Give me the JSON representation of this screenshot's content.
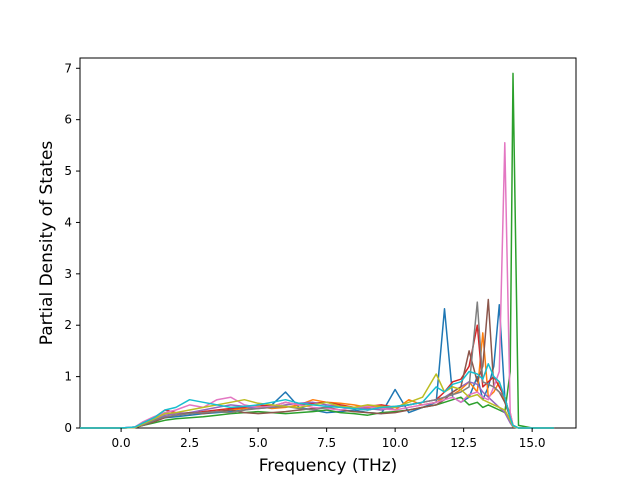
{
  "chart_data": {
    "type": "line",
    "title": "",
    "xlabel": "Frequency (THz)",
    "ylabel": "Partial Density of States",
    "xlim": [
      -1.5,
      16.6
    ],
    "ylim": [
      0,
      7.2
    ],
    "x_ticks": [
      0.0,
      2.5,
      5.0,
      7.5,
      10.0,
      12.5,
      15.0
    ],
    "x_tick_labels": [
      "0.0",
      "2.5",
      "5.0",
      "7.5",
      "10.0",
      "12.5",
      "15.0"
    ],
    "y_ticks": [
      0,
      1,
      2,
      3,
      4,
      5,
      6,
      7
    ],
    "y_tick_labels": [
      "0",
      "1",
      "2",
      "3",
      "4",
      "5",
      "6",
      "7"
    ],
    "grid": false,
    "legend": "none",
    "x": [
      -1.5,
      -0.5,
      0.0,
      0.5,
      0.8,
      1.2,
      1.6,
      2.0,
      2.5,
      3.0,
      3.5,
      4.0,
      4.5,
      5.0,
      5.5,
      6.0,
      6.5,
      7.0,
      7.5,
      8.0,
      8.5,
      9.0,
      9.5,
      10.0,
      10.5,
      11.0,
      11.5,
      11.8,
      12.1,
      12.4,
      12.7,
      13.0,
      13.2,
      13.4,
      13.6,
      13.8,
      14.0,
      14.2,
      14.3,
      14.5,
      15.0,
      15.8
    ],
    "series": [
      {
        "color": "#1f77b4",
        "values": [
          0,
          0,
          0,
          0.02,
          0.1,
          0.15,
          0.2,
          0.22,
          0.25,
          0.28,
          0.3,
          0.32,
          0.35,
          0.4,
          0.45,
          0.7,
          0.4,
          0.35,
          0.3,
          0.32,
          0.35,
          0.3,
          0.28,
          0.75,
          0.3,
          0.4,
          0.5,
          2.32,
          0.6,
          0.5,
          0.6,
          1.0,
          0.55,
          0.8,
          1.2,
          2.4,
          0.6,
          0.2,
          0.05,
          0,
          0,
          0
        ]
      },
      {
        "color": "#ff7f0e",
        "values": [
          0,
          0,
          0,
          0.01,
          0.08,
          0.18,
          0.3,
          0.25,
          0.28,
          0.3,
          0.32,
          0.35,
          0.38,
          0.42,
          0.38,
          0.4,
          0.45,
          0.55,
          0.5,
          0.48,
          0.45,
          0.4,
          0.42,
          0.35,
          0.55,
          0.45,
          0.5,
          0.6,
          0.65,
          0.75,
          0.9,
          0.7,
          1.85,
          0.6,
          0.7,
          0.9,
          0.5,
          0.3,
          0.05,
          0,
          0,
          0
        ]
      },
      {
        "color": "#2ca02c",
        "values": [
          0,
          0,
          0,
          0.01,
          0.05,
          0.1,
          0.15,
          0.18,
          0.2,
          0.22,
          0.25,
          0.28,
          0.3,
          0.32,
          0.3,
          0.28,
          0.3,
          0.32,
          0.35,
          0.3,
          0.28,
          0.25,
          0.3,
          0.32,
          0.35,
          0.4,
          0.45,
          0.5,
          0.55,
          0.6,
          0.45,
          0.5,
          0.4,
          0.45,
          0.4,
          0.35,
          0.3,
          1.1,
          6.9,
          0.05,
          0,
          0
        ]
      },
      {
        "color": "#d62728",
        "values": [
          0,
          0,
          0,
          0.01,
          0.06,
          0.2,
          0.35,
          0.3,
          0.28,
          0.32,
          0.35,
          0.38,
          0.4,
          0.45,
          0.42,
          0.5,
          0.45,
          0.48,
          0.5,
          0.45,
          0.4,
          0.42,
          0.45,
          0.4,
          0.45,
          0.5,
          0.55,
          0.7,
          0.9,
          0.95,
          1.2,
          2.0,
          0.8,
          0.9,
          1.0,
          0.8,
          0.6,
          0.2,
          0.05,
          0,
          0,
          0
        ]
      },
      {
        "color": "#9467bd",
        "values": [
          0,
          0,
          0,
          0.02,
          0.1,
          0.15,
          0.25,
          0.28,
          0.3,
          0.35,
          0.4,
          0.45,
          0.42,
          0.38,
          0.4,
          0.45,
          0.48,
          0.5,
          0.45,
          0.42,
          0.4,
          0.38,
          0.35,
          0.4,
          0.45,
          0.5,
          0.55,
          0.6,
          0.7,
          0.8,
          0.9,
          0.85,
          0.7,
          0.6,
          0.5,
          0.4,
          0.3,
          0.1,
          0.02,
          0,
          0,
          0
        ]
      },
      {
        "color": "#8c564b",
        "values": [
          0,
          0,
          0,
          0.01,
          0.05,
          0.12,
          0.2,
          0.25,
          0.3,
          0.28,
          0.32,
          0.35,
          0.3,
          0.28,
          0.3,
          0.32,
          0.35,
          0.38,
          0.4,
          0.35,
          0.32,
          0.3,
          0.28,
          0.3,
          0.35,
          0.4,
          0.45,
          0.55,
          0.7,
          0.8,
          1.5,
          0.9,
          1.2,
          2.5,
          0.8,
          0.7,
          0.5,
          0.2,
          0.05,
          0,
          0,
          0
        ]
      },
      {
        "color": "#e377c2",
        "values": [
          0,
          0,
          0,
          0.02,
          0.12,
          0.22,
          0.3,
          0.35,
          0.45,
          0.4,
          0.55,
          0.6,
          0.45,
          0.4,
          0.42,
          0.5,
          0.45,
          0.4,
          0.38,
          0.35,
          0.4,
          0.42,
          0.38,
          0.35,
          0.4,
          0.45,
          0.5,
          0.55,
          0.6,
          0.5,
          0.65,
          0.7,
          0.6,
          0.55,
          0.8,
          1.1,
          5.55,
          0.3,
          0.05,
          0,
          0,
          0
        ]
      },
      {
        "color": "#7f7f7f",
        "values": [
          0,
          0,
          0,
          0.01,
          0.06,
          0.15,
          0.22,
          0.25,
          0.28,
          0.3,
          0.32,
          0.3,
          0.35,
          0.38,
          0.4,
          0.42,
          0.38,
          0.35,
          0.4,
          0.42,
          0.38,
          0.35,
          0.4,
          0.42,
          0.45,
          0.5,
          0.55,
          0.6,
          0.65,
          0.7,
          0.8,
          2.45,
          0.9,
          0.85,
          0.8,
          0.7,
          0.6,
          0.2,
          0.05,
          0,
          0,
          0
        ]
      },
      {
        "color": "#bcbd22",
        "values": [
          0,
          0,
          0,
          0.01,
          0.08,
          0.18,
          0.28,
          0.3,
          0.35,
          0.4,
          0.45,
          0.5,
          0.55,
          0.48,
          0.45,
          0.42,
          0.4,
          0.45,
          0.5,
          0.42,
          0.4,
          0.45,
          0.42,
          0.4,
          0.5,
          0.6,
          1.05,
          0.7,
          0.8,
          0.75,
          0.6,
          0.65,
          0.55,
          0.5,
          0.45,
          0.4,
          0.35,
          0.15,
          0.03,
          0,
          0,
          0
        ]
      },
      {
        "color": "#17becf",
        "values": [
          0,
          0,
          0,
          0.02,
          0.1,
          0.2,
          0.35,
          0.4,
          0.55,
          0.5,
          0.45,
          0.4,
          0.42,
          0.45,
          0.5,
          0.55,
          0.48,
          0.45,
          0.42,
          0.4,
          0.38,
          0.35,
          0.4,
          0.42,
          0.45,
          0.5,
          0.8,
          0.7,
          0.85,
          0.9,
          1.1,
          1.05,
          0.95,
          1.25,
          1.0,
          0.9,
          0.6,
          0.2,
          0.05,
          0,
          0,
          0
        ]
      }
    ]
  }
}
